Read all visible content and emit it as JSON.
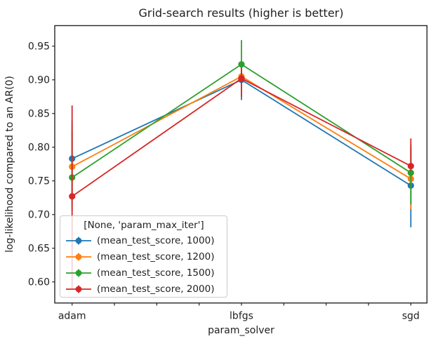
{
  "chart_data": {
    "type": "line",
    "title": "Grid-search results (higher is better)",
    "xlabel": "param_solver",
    "ylabel": "log-likelihood compared to an AR(0)",
    "categories": [
      "adam",
      "lbfgs",
      "sgd"
    ],
    "yticks": [
      0.6,
      0.65,
      0.7,
      0.75,
      0.8,
      0.85,
      0.9,
      0.95
    ],
    "ylim": [
      0.5687,
      0.9805
    ],
    "x_minor_ticks_per_gap": 3,
    "grid": false,
    "marker": "circle",
    "legend": {
      "title": "[None, 'param_max_iter']",
      "position": "lower left"
    },
    "series": [
      {
        "name": "(mean_test_score, 1000)",
        "color": "#1f77b4",
        "values": [
          0.783,
          0.9,
          0.743
        ],
        "err_low": [
          0.725,
          0.87,
          0.681
        ],
        "err_high": [
          0.84,
          0.921,
          0.8
        ]
      },
      {
        "name": "(mean_test_score, 1200)",
        "color": "#ff7f0e",
        "values": [
          0.771,
          0.905,
          0.753
        ],
        "err_low": [
          0.715,
          0.878,
          0.708
        ],
        "err_high": [
          0.835,
          0.926,
          0.8
        ]
      },
      {
        "name": "(mean_test_score, 1500)",
        "color": "#2ca02c",
        "values": [
          0.755,
          0.923,
          0.762
        ],
        "err_low": [
          0.705,
          0.885,
          0.715
        ],
        "err_high": [
          0.825,
          0.959,
          0.805
        ]
      },
      {
        "name": "(mean_test_score, 2000)",
        "color": "#d62728",
        "values": [
          0.727,
          0.902,
          0.772
        ],
        "err_low": [
          0.589,
          0.875,
          0.765
        ],
        "err_high": [
          0.862,
          0.918,
          0.813
        ]
      }
    ]
  }
}
